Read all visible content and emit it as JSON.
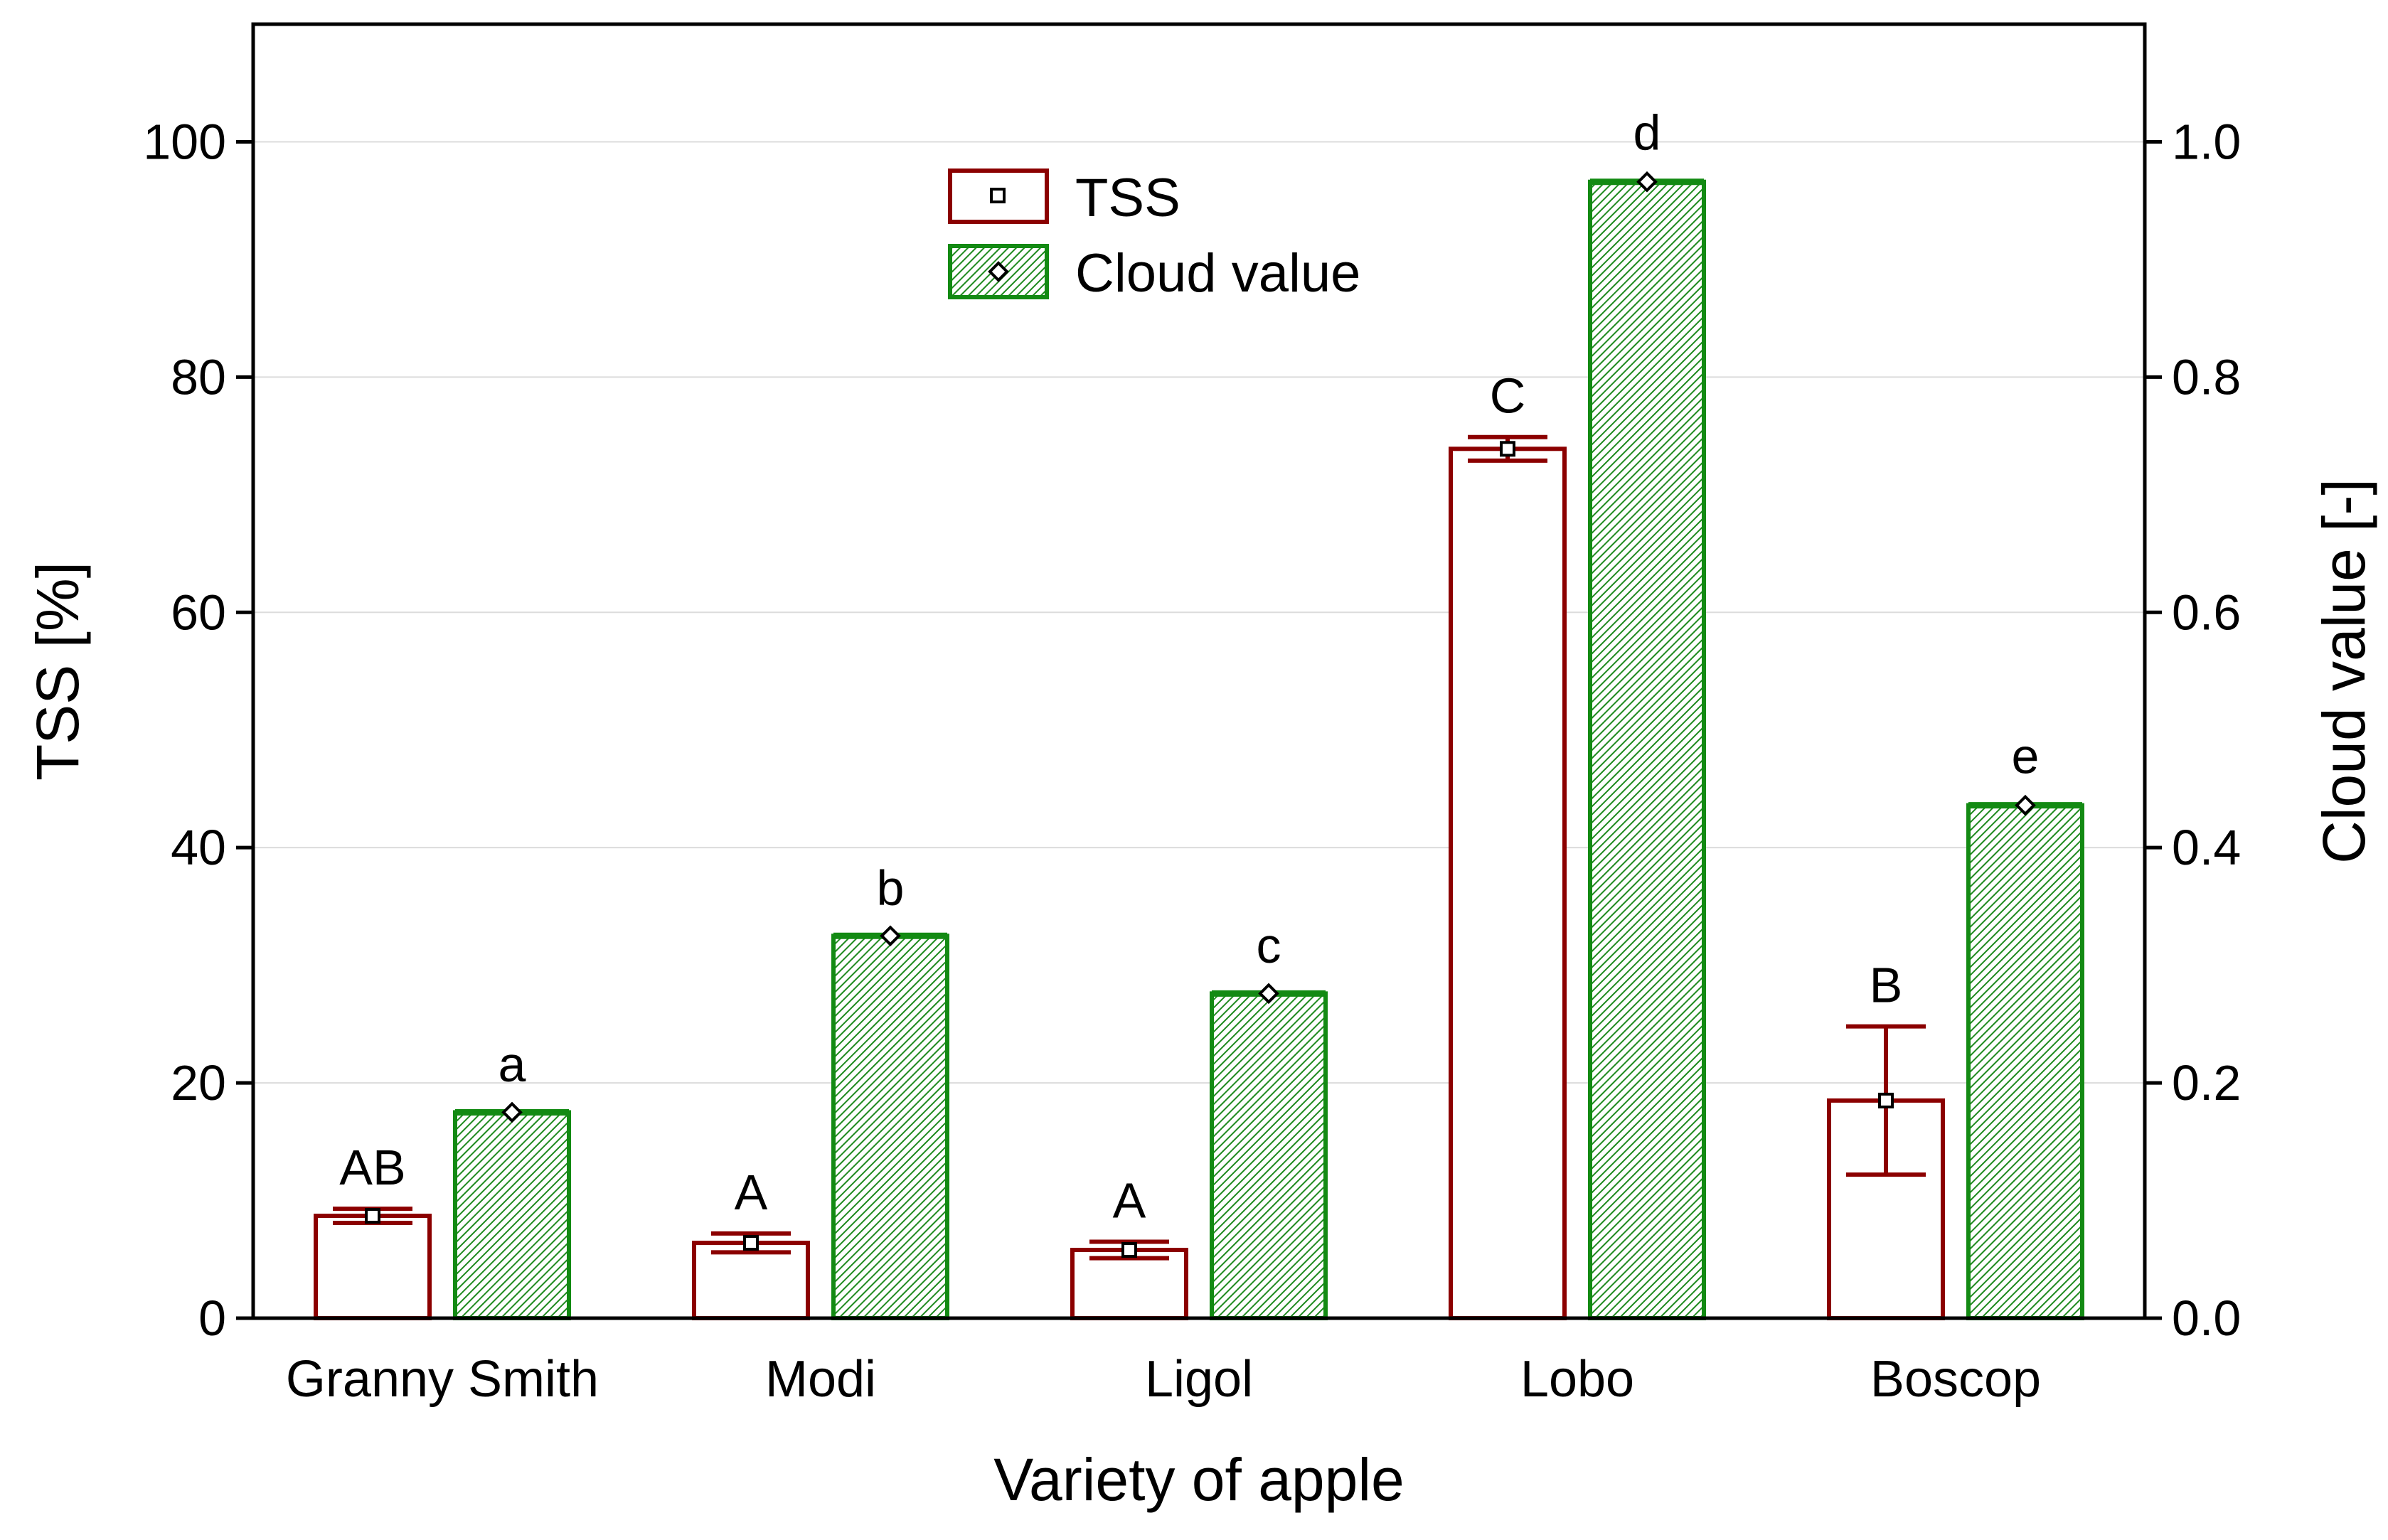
{
  "chart_data": {
    "type": "bar",
    "xlabel": "Variety of apple",
    "ylabel": "TSS [%]",
    "y2label": "Cloud value [-]",
    "categories": [
      "Granny Smith",
      "Modi",
      "Ligol",
      "Lobo",
      "Boscop"
    ],
    "ylim": [
      0,
      110
    ],
    "y2lim": [
      0,
      1.1
    ],
    "yticks": [
      0,
      20,
      40,
      60,
      80,
      100
    ],
    "y2ticks": [
      0.0,
      0.2,
      0.4,
      0.6,
      0.8,
      1.0
    ],
    "ytick_labels": [
      "0",
      "20",
      "40",
      "60",
      "80",
      "100"
    ],
    "y2tick_labels": [
      "0.0",
      "0.2",
      "0.4",
      "0.6",
      "0.8",
      "1.0"
    ],
    "grid": true,
    "legend_position": "top-center",
    "series": [
      {
        "name": "TSS",
        "axis": "left",
        "color": "#8b0000",
        "fill": "#ffffff",
        "values": [
          8.7,
          6.4,
          5.8,
          73.9,
          18.5
        ],
        "errors": [
          0.6,
          0.8,
          0.7,
          1.0,
          6.3
        ],
        "letters": [
          "AB",
          "A",
          "A",
          "C",
          "B"
        ]
      },
      {
        "name": "Cloud value",
        "axis": "right",
        "color": "#138a13",
        "fill": "hatched-green",
        "values": [
          0.175,
          0.325,
          0.276,
          0.966,
          0.436
        ],
        "errors": [
          0.002,
          0.002,
          0.002,
          0.003,
          0.003
        ],
        "letters": [
          "a",
          "b",
          "c",
          "d",
          "e"
        ]
      }
    ]
  }
}
